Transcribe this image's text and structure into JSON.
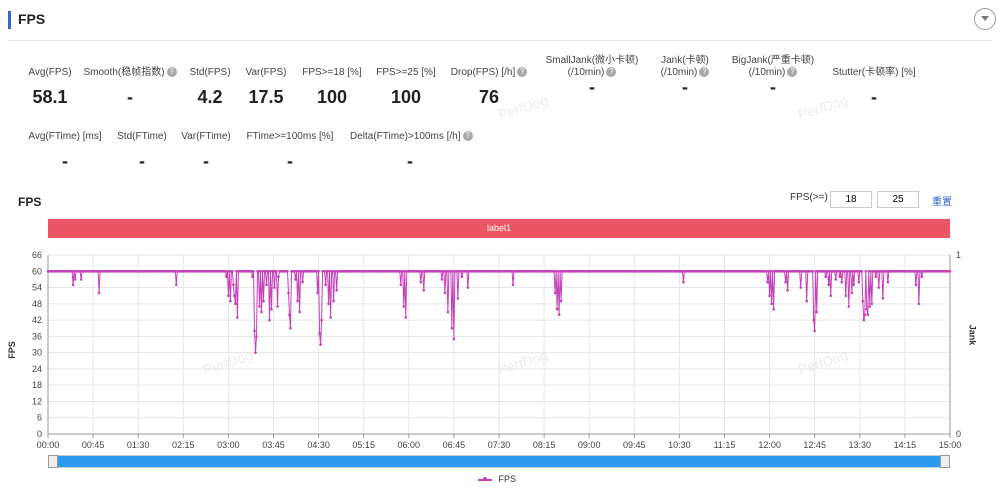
{
  "header": {
    "title": "FPS"
  },
  "metrics_row1": [
    {
      "label1": "Avg(FPS)",
      "label2": "",
      "help": false,
      "value": "58.1"
    },
    {
      "label1": "Smooth(稳帧指数)",
      "label2": "",
      "help": true,
      "value": "-"
    },
    {
      "label1": "Std(FPS)",
      "label2": "",
      "help": false,
      "value": "4.2"
    },
    {
      "label1": "Var(FPS)",
      "label2": "",
      "help": false,
      "value": "17.5"
    },
    {
      "label1": "FPS>=18 [%]",
      "label2": "",
      "help": false,
      "value": "100"
    },
    {
      "label1": "FPS>=25 [%]",
      "label2": "",
      "help": false,
      "value": "100"
    },
    {
      "label1": "Drop(FPS) [/h]",
      "label2": "",
      "help": true,
      "value": "76"
    },
    {
      "label1": "SmallJank(微小卡顿)",
      "label2": "(/10min)",
      "help": true,
      "value": "-"
    },
    {
      "label1": "Jank(卡顿)",
      "label2": "(/10min)",
      "help": true,
      "value": "-"
    },
    {
      "label1": "BigJank(严重卡顿)",
      "label2": "(/10min)",
      "help": true,
      "value": "-"
    },
    {
      "label1": "Stutter(卡顿率) [%]",
      "label2": "",
      "help": false,
      "value": "-"
    }
  ],
  "metrics_row2": [
    {
      "label1": "Avg(FTime) [ms]",
      "help": false,
      "value": "-"
    },
    {
      "label1": "Std(FTime)",
      "help": false,
      "value": "-"
    },
    {
      "label1": "Var(FTime)",
      "help": false,
      "value": "-"
    },
    {
      "label1": "FTime>=100ms [%]",
      "help": false,
      "value": "-"
    },
    {
      "label1": "Delta(FTime)>100ms [/h]",
      "help": true,
      "value": "-"
    }
  ],
  "chart_section": {
    "title": "FPS",
    "fps_threshold_label": "FPS(>=)",
    "threshold1": "18",
    "threshold2": "25",
    "reset_label": "重置",
    "label_bar": "label1",
    "watermark": "PerfDog"
  },
  "colors": {
    "series": "#c541b8",
    "label_bar": "#ec5563",
    "scrollbar": "#2d9bf0",
    "accent": "#3366cc"
  },
  "chart_data": {
    "type": "line",
    "ylabel": "FPS",
    "y2label": "Jank",
    "ylim": [
      0,
      66
    ],
    "yticks": [
      0,
      6,
      12,
      18,
      24,
      30,
      36,
      42,
      48,
      54,
      60,
      66
    ],
    "y2lim": [
      0,
      1
    ],
    "y2ticks": [
      0,
      1
    ],
    "xlim": [
      0,
      900
    ],
    "xticks": [
      "00:00",
      "00:45",
      "01:30",
      "02:15",
      "03:00",
      "03:45",
      "04:30",
      "05:15",
      "06:00",
      "06:45",
      "07:30",
      "08:15",
      "09:00",
      "09:45",
      "10:30",
      "11:15",
      "12:00",
      "12:45",
      "13:30",
      "14:15",
      "15:00"
    ],
    "baseline": 60,
    "series": [
      {
        "name": "FPS",
        "dips": [
          [
            25,
            55
          ],
          [
            27,
            57
          ],
          [
            33,
            57
          ],
          [
            51,
            52
          ],
          [
            128,
            55
          ],
          [
            178,
            58
          ],
          [
            180,
            51
          ],
          [
            182,
            49
          ],
          [
            185,
            55
          ],
          [
            186,
            51
          ],
          [
            187,
            48
          ],
          [
            189,
            43
          ],
          [
            204,
            58
          ],
          [
            206,
            38
          ],
          [
            207,
            30
          ],
          [
            208,
            36
          ],
          [
            211,
            47
          ],
          [
            213,
            45
          ],
          [
            215,
            49
          ],
          [
            218,
            55
          ],
          [
            221,
            42
          ],
          [
            223,
            46
          ],
          [
            226,
            54
          ],
          [
            229,
            47
          ],
          [
            230,
            58
          ],
          [
            240,
            52
          ],
          [
            241,
            44
          ],
          [
            242,
            39
          ],
          [
            247,
            57
          ],
          [
            249,
            49
          ],
          [
            251,
            45
          ],
          [
            254,
            56
          ],
          [
            269,
            52
          ],
          [
            271,
            37
          ],
          [
            272,
            33
          ],
          [
            273,
            42
          ],
          [
            277,
            55
          ],
          [
            280,
            48
          ],
          [
            282,
            43
          ],
          [
            285,
            49
          ],
          [
            288,
            53
          ],
          [
            352,
            55
          ],
          [
            355,
            47
          ],
          [
            357,
            43
          ],
          [
            372,
            56
          ],
          [
            375,
            53
          ],
          [
            393,
            57
          ],
          [
            396,
            52
          ],
          [
            399,
            45
          ],
          [
            403,
            39
          ],
          [
            405,
            35
          ],
          [
            409,
            50
          ],
          [
            413,
            58
          ],
          [
            419,
            54
          ],
          [
            464,
            55
          ],
          [
            506,
            52
          ],
          [
            508,
            46
          ],
          [
            510,
            44
          ],
          [
            512,
            49
          ],
          [
            634,
            56
          ],
          [
            718,
            56
          ],
          [
            720,
            51
          ],
          [
            722,
            48
          ],
          [
            724,
            46
          ],
          [
            736,
            56
          ],
          [
            738,
            53
          ],
          [
            751,
            54
          ],
          [
            757,
            49
          ],
          [
            764,
            42
          ],
          [
            765,
            38
          ],
          [
            767,
            45
          ],
          [
            776,
            58
          ],
          [
            779,
            55
          ],
          [
            781,
            51
          ],
          [
            786,
            57
          ],
          [
            790,
            58
          ],
          [
            792,
            56
          ],
          [
            796,
            51
          ],
          [
            799,
            47
          ],
          [
            802,
            52
          ],
          [
            804,
            55
          ],
          [
            809,
            56
          ],
          [
            813,
            49
          ],
          [
            814,
            42
          ],
          [
            815,
            44
          ],
          [
            817,
            46
          ],
          [
            818,
            44
          ],
          [
            820,
            47
          ],
          [
            822,
            48
          ],
          [
            826,
            58
          ],
          [
            829,
            54
          ],
          [
            833,
            50
          ],
          [
            838,
            56
          ],
          [
            866,
            55
          ],
          [
            869,
            48
          ],
          [
            872,
            58
          ]
        ]
      }
    ],
    "legend": [
      "FPS"
    ],
    "legend_position": "bottom-center",
    "grid": true
  }
}
